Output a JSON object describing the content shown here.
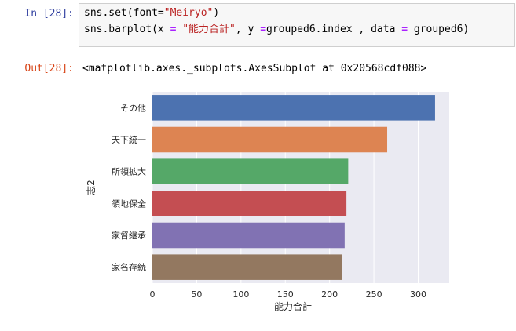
{
  "input_cell": {
    "prompt": "In [28]:",
    "line1": {
      "a": "sns.set(font=",
      "b": "\"Meiryo\"",
      "c": ")"
    },
    "line2": {
      "a": "sns.barplot(x ",
      "eq1": "=",
      "b": " ",
      "str": "\"能力合計\"",
      "c": ", y ",
      "eq2": "=",
      "d": "grouped6.index , data ",
      "eq3": "=",
      "e": " grouped6)"
    }
  },
  "output_cell": {
    "prompt": "Out[28]:",
    "text": "<matplotlib.axes._subplots.AxesSubplot at 0x20568cdf088>"
  },
  "chart_data": {
    "type": "bar",
    "orientation": "horizontal",
    "categories": [
      "その他",
      "天下統一",
      "所領拡大",
      "領地保全",
      "家督継承",
      "家名存続"
    ],
    "values": [
      319,
      265,
      221,
      219,
      217,
      214
    ],
    "xlabel": "能力合計",
    "ylabel": "志2",
    "xlim": [
      0,
      335
    ],
    "xticks": [
      0,
      50,
      100,
      150,
      200,
      250,
      300
    ],
    "grid": true,
    "colors": [
      "#4c72b0",
      "#dd8452",
      "#55a868",
      "#c44e52",
      "#8172b3",
      "#937860"
    ],
    "background": "#eaeaf2"
  }
}
